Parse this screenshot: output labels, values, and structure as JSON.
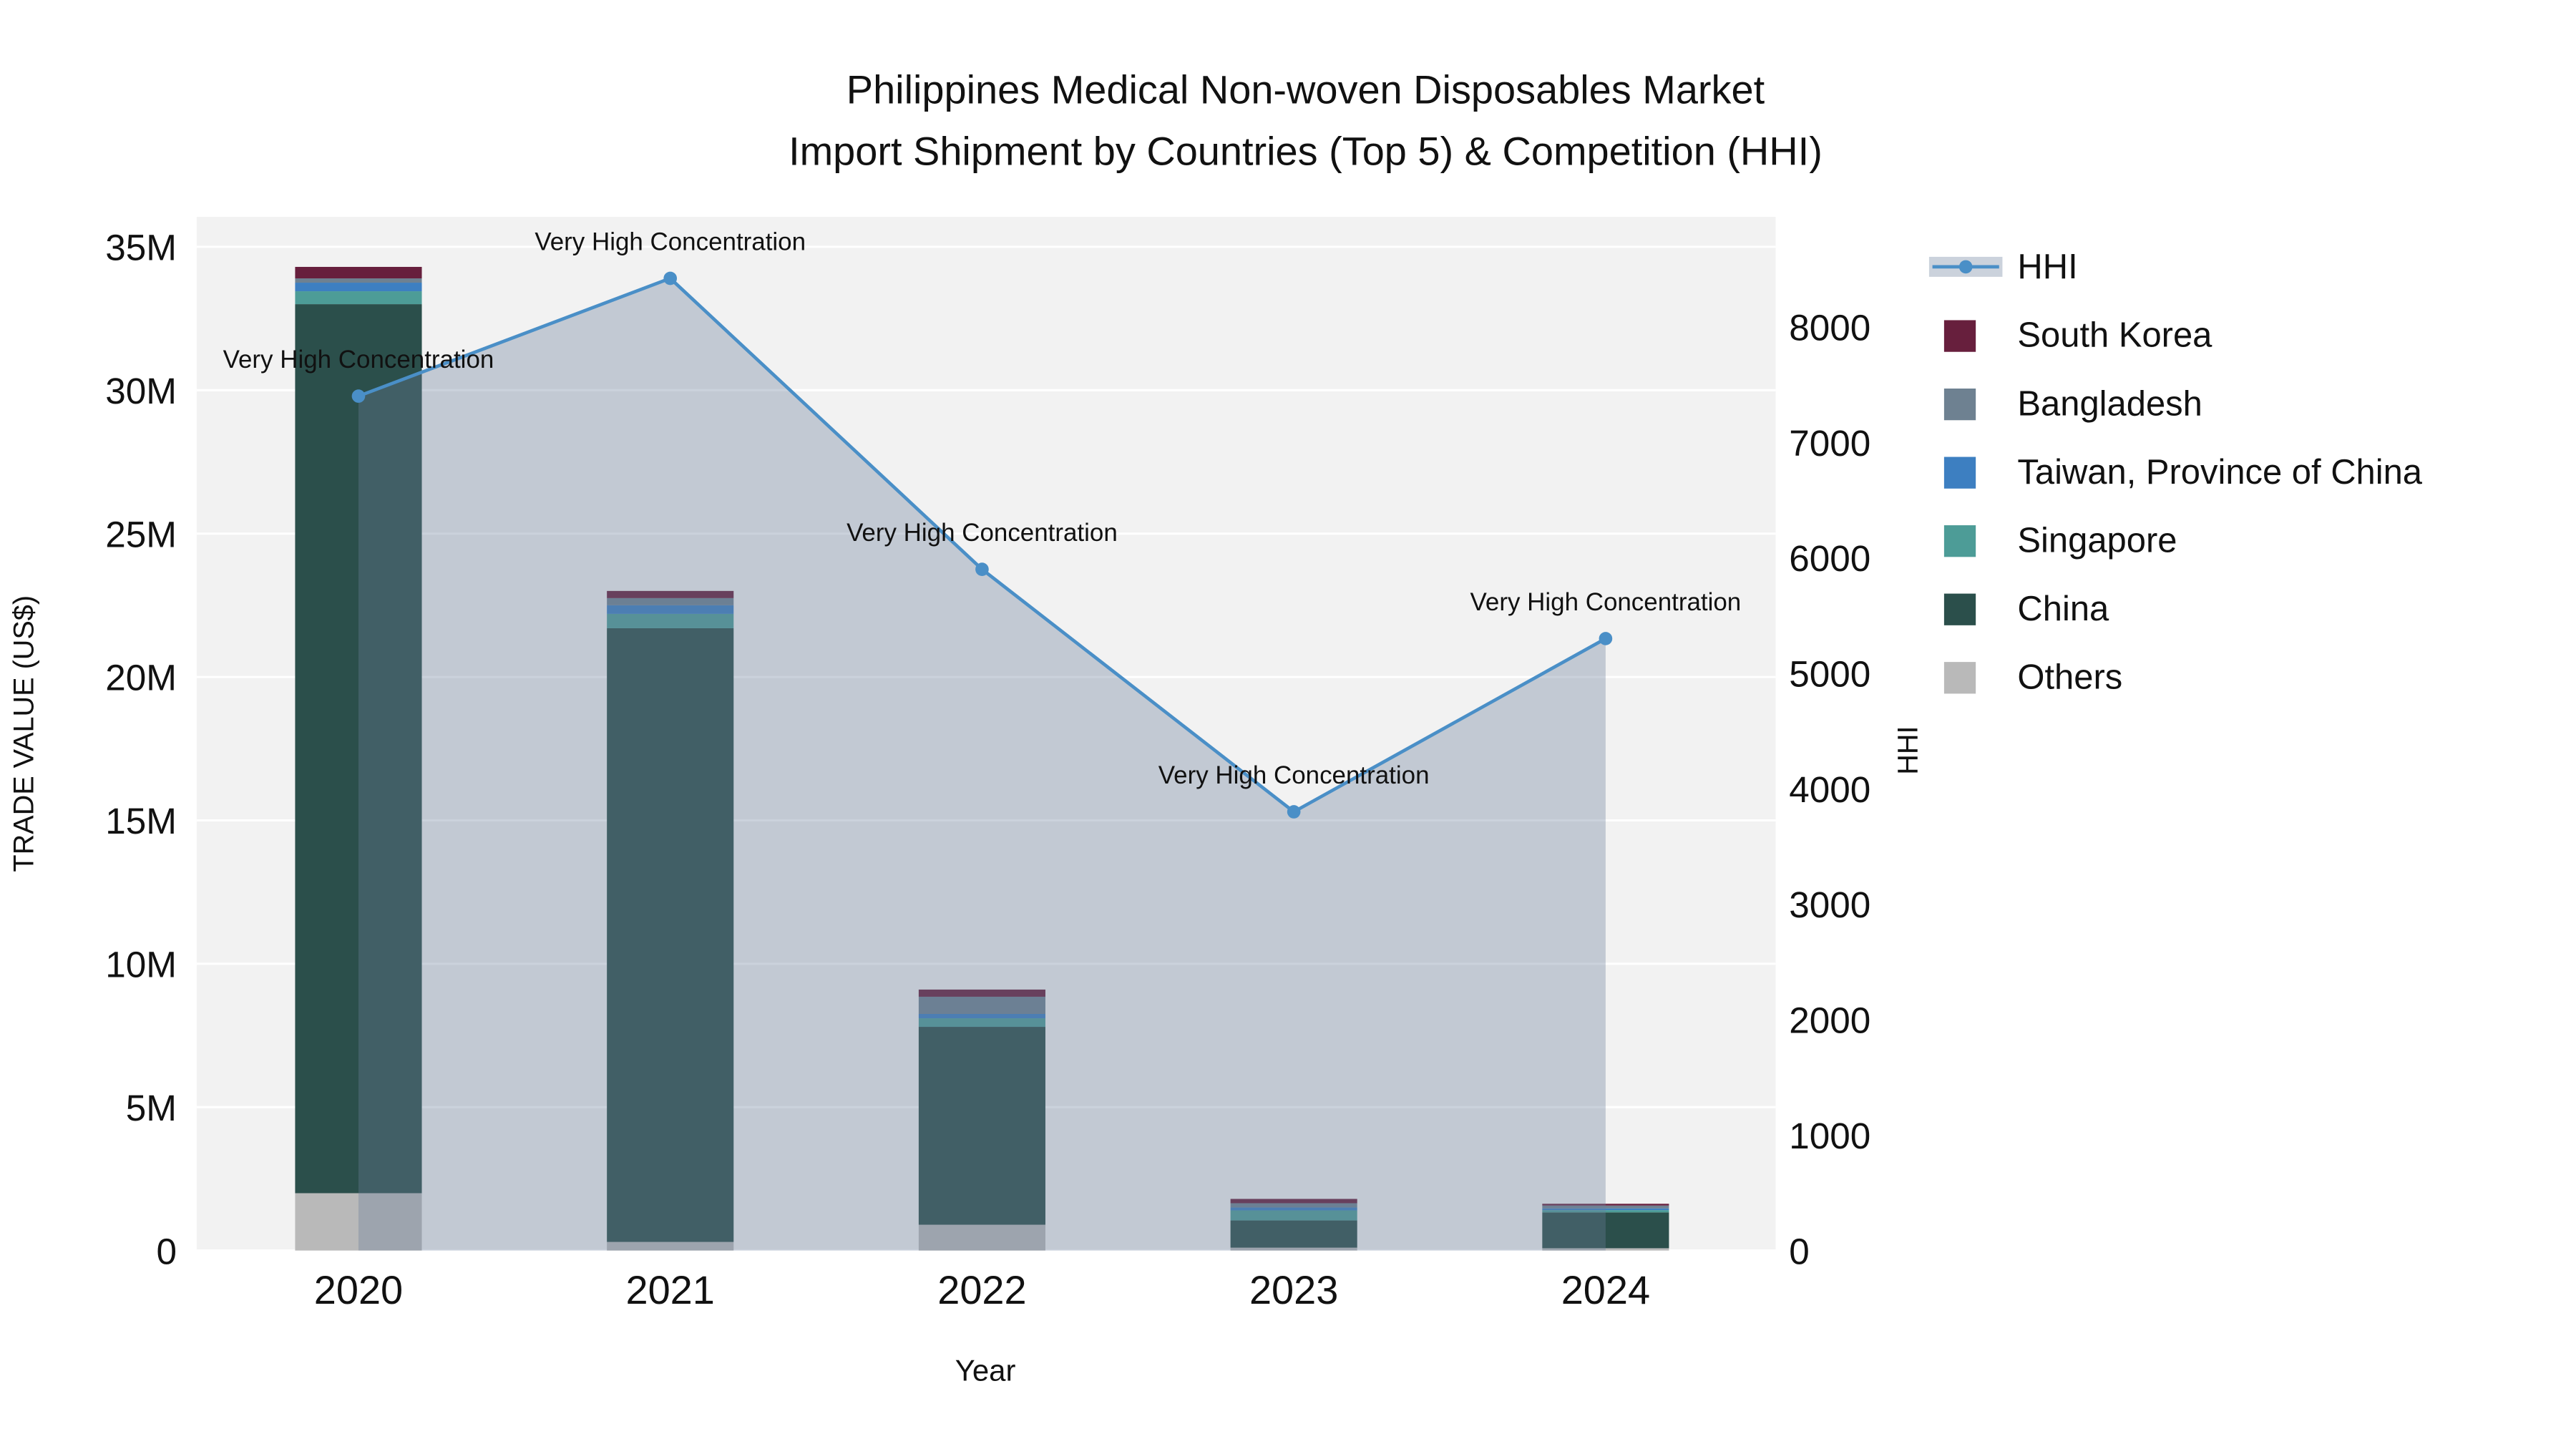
{
  "title": {
    "line1": "Philippines Medical Non-woven Disposables Market",
    "line2": "Import Shipment by Countries (Top 5) & Competition (HHI)"
  },
  "colors": {
    "plot_background": "#f2f2f2",
    "gridline": "#ffffff",
    "hhi_line": "#4a8fc7",
    "hhi_area_fill": "rgba(105,125,155,0.35)",
    "south_korea": "#671f3d",
    "bangladesh": "#6e8191",
    "taiwan": "#3d7fc1",
    "singapore": "#4d9c97",
    "china": "#2b4f4b",
    "others": "#b9b9b9",
    "text": "#111111"
  },
  "chart_data": {
    "type": "bar",
    "stack_order": "bottom_to_top",
    "title": "Philippines Medical Non-woven Disposables Market Import Shipment by Countries (Top 5) & Competition (HHI)",
    "categories": [
      "2020",
      "2021",
      "2022",
      "2023",
      "2024"
    ],
    "bar_series": [
      {
        "name": "Others",
        "color": "#b9b9b9",
        "values": [
          2000000,
          300000,
          900000,
          100000,
          80000
        ]
      },
      {
        "name": "China",
        "color": "#2b4f4b",
        "values": [
          31000000,
          21400000,
          6900000,
          950000,
          1250000
        ]
      },
      {
        "name": "Singapore",
        "color": "#4d9c97",
        "values": [
          450000,
          500000,
          300000,
          350000,
          80000
        ]
      },
      {
        "name": "Taiwan, Province of China",
        "color": "#3d7fc1",
        "values": [
          300000,
          300000,
          150000,
          100000,
          60000
        ]
      },
      {
        "name": "Bangladesh",
        "color": "#6e8191",
        "values": [
          150000,
          250000,
          600000,
          150000,
          100000
        ]
      },
      {
        "name": "South Korea",
        "color": "#671f3d",
        "values": [
          400000,
          250000,
          250000,
          150000,
          60000
        ]
      }
    ],
    "line_series": {
      "name": "HHI",
      "color": "#4a8fc7",
      "area_fill": "rgba(105,125,155,0.35)",
      "values": [
        7400,
        8420,
        5900,
        3800,
        5300
      ]
    },
    "annotations": [
      {
        "x": "2020",
        "text": "Very High Concentration"
      },
      {
        "x": "2021",
        "text": "Very High Concentration"
      },
      {
        "x": "2022",
        "text": "Very High Concentration"
      },
      {
        "x": "2023",
        "text": "Very High Concentration"
      },
      {
        "x": "2024",
        "text": "Very High Concentration"
      }
    ],
    "axes": {
      "x": {
        "label": "Year"
      },
      "left": {
        "label": "TRADE VALUE (US$)",
        "ticks": [
          {
            "label": "0",
            "value": 0
          },
          {
            "label": "5M",
            "value": 5000000
          },
          {
            "label": "10M",
            "value": 10000000
          },
          {
            "label": "15M",
            "value": 15000000
          },
          {
            "label": "20M",
            "value": 20000000
          },
          {
            "label": "25M",
            "value": 25000000
          },
          {
            "label": "30M",
            "value": 30000000
          },
          {
            "label": "35M",
            "value": 35000000
          }
        ]
      },
      "right": {
        "label": "HHI",
        "ticks": [
          {
            "label": "0",
            "value": 0
          },
          {
            "label": "1000",
            "value": 1000
          },
          {
            "label": "2000",
            "value": 2000
          },
          {
            "label": "3000",
            "value": 3000
          },
          {
            "label": "4000",
            "value": 4000
          },
          {
            "label": "5000",
            "value": 5000
          },
          {
            "label": "6000",
            "value": 6000
          },
          {
            "label": "7000",
            "value": 7000
          },
          {
            "label": "8000",
            "value": 8000
          }
        ]
      }
    },
    "legend": [
      {
        "label": "HHI",
        "type": "line",
        "color": "#4a8fc7"
      },
      {
        "label": "South Korea",
        "type": "box",
        "color": "#671f3d"
      },
      {
        "label": "Bangladesh",
        "type": "box",
        "color": "#6e8191"
      },
      {
        "label": "Taiwan, Province of China",
        "type": "box",
        "color": "#3d7fc1"
      },
      {
        "label": "Singapore",
        "type": "box",
        "color": "#4d9c97"
      },
      {
        "label": "China",
        "type": "box",
        "color": "#2b4f4b"
      },
      {
        "label": "Others",
        "type": "box",
        "color": "#b9b9b9"
      }
    ]
  }
}
